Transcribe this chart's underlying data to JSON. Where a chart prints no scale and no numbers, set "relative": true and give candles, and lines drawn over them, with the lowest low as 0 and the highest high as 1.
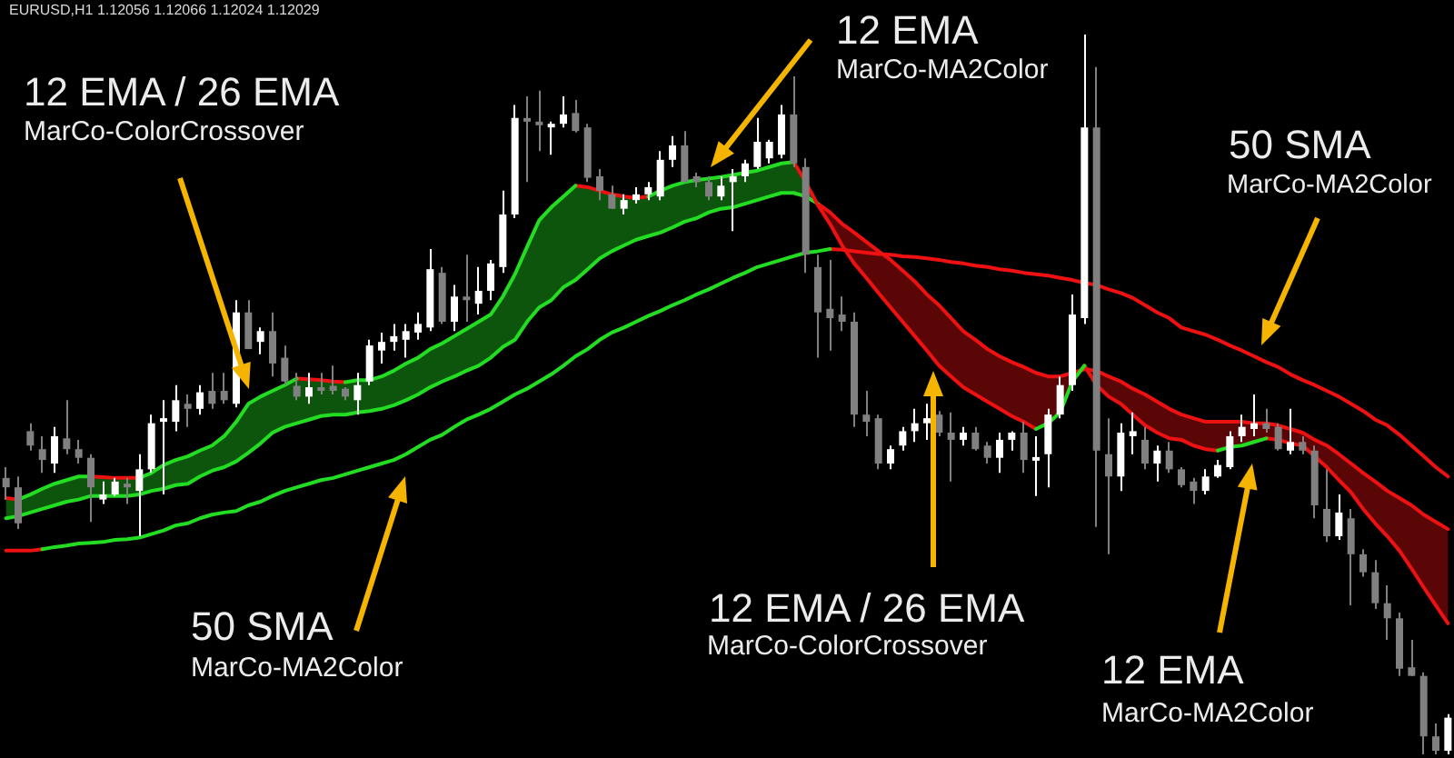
{
  "chart_data": {
    "type": "candlestick",
    "title": "EURUSD,H1 1.12056 1.12066 1.12024 1.12029",
    "relative": true,
    "categories": [
      null,
      null,
      null,
      null,
      null,
      null,
      null,
      null,
      null,
      null,
      null,
      null,
      null,
      null,
      null,
      null,
      null,
      null,
      null,
      null,
      null,
      null,
      null,
      null,
      null,
      null,
      null,
      null,
      null,
      null,
      null,
      null,
      null,
      null,
      null,
      null,
      null,
      null,
      null,
      null,
      null,
      null,
      null,
      null,
      null,
      null,
      null,
      null,
      null,
      null,
      null,
      null,
      null,
      null,
      null,
      null,
      null,
      null,
      null,
      null,
      null,
      null,
      null,
      null,
      null,
      null,
      null,
      null,
      null,
      null,
      null,
      null,
      null,
      null,
      null,
      null,
      null,
      null,
      null,
      null,
      null,
      null,
      null,
      null,
      null,
      null,
      null,
      null,
      null,
      null,
      null,
      null,
      null,
      null,
      null,
      null,
      null,
      null,
      null,
      null,
      null,
      null,
      null,
      null,
      null,
      null,
      null,
      null,
      null,
      null,
      null,
      null,
      null,
      null,
      null,
      null,
      null,
      null,
      null,
      null
    ],
    "ohlc": [
      [
        0.384,
        0.399,
        0.354,
        0.371
      ],
      [
        0.371,
        0.386,
        0.313,
        0.321
      ],
      [
        0.449,
        0.46,
        0.422,
        0.429
      ],
      [
        0.424,
        0.442,
        0.391,
        0.409
      ],
      [
        0.404,
        0.455,
        0.391,
        0.442
      ],
      [
        0.439,
        0.492,
        0.417,
        0.424
      ],
      [
        0.424,
        0.437,
        0.404,
        0.412
      ],
      [
        0.412,
        0.417,
        0.323,
        0.371
      ],
      [
        0.354,
        0.379,
        0.348,
        0.361
      ],
      [
        0.361,
        0.384,
        0.359,
        0.379
      ],
      [
        0.376,
        0.384,
        0.348,
        0.371
      ],
      [
        0.366,
        0.417,
        0.303,
        0.396
      ],
      [
        0.396,
        0.472,
        0.391,
        0.46
      ],
      [
        0.462,
        0.492,
        0.361,
        0.467
      ],
      [
        0.462,
        0.513,
        0.449,
        0.492
      ],
      [
        0.487,
        0.5,
        0.455,
        0.48
      ],
      [
        0.48,
        0.513,
        0.472,
        0.503
      ],
      [
        0.505,
        0.53,
        0.48,
        0.487
      ],
      [
        0.505,
        0.53,
        0.487,
        0.492
      ],
      [
        0.487,
        0.631,
        0.482,
        0.614
      ],
      [
        0.614,
        0.631,
        0.563,
        0.563
      ],
      [
        0.573,
        0.593,
        0.556,
        0.588
      ],
      [
        0.588,
        0.614,
        0.525,
        0.543
      ],
      [
        0.551,
        0.568,
        0.513,
        0.518
      ],
      [
        0.512,
        0.53,
        0.492,
        0.497
      ],
      [
        0.497,
        0.53,
        0.487,
        0.51
      ],
      [
        0.51,
        0.53,
        0.5,
        0.505
      ],
      [
        0.512,
        0.54,
        0.5,
        0.505
      ],
      [
        0.508,
        0.51,
        0.492,
        0.497
      ],
      [
        0.492,
        0.53,
        0.472,
        0.513
      ],
      [
        0.518,
        0.576,
        0.513,
        0.568
      ],
      [
        0.561,
        0.586,
        0.543,
        0.573
      ],
      [
        0.573,
        0.598,
        0.561,
        0.581
      ],
      [
        0.576,
        0.598,
        0.551,
        0.588
      ],
      [
        0.586,
        0.614,
        0.576,
        0.598
      ],
      [
        0.593,
        0.702,
        0.588,
        0.674
      ],
      [
        0.669,
        0.677,
        0.598,
        0.601
      ],
      [
        0.601,
        0.652,
        0.588,
        0.636
      ],
      [
        0.636,
        0.694,
        0.601,
        0.631
      ],
      [
        0.626,
        0.677,
        0.611,
        0.644
      ],
      [
        0.644,
        0.687,
        0.631,
        0.682
      ],
      [
        0.677,
        0.783,
        0.669,
        0.75
      ],
      [
        0.75,
        0.902,
        0.745,
        0.884
      ],
      [
        0.884,
        0.914,
        0.795,
        0.879
      ],
      [
        0.879,
        0.922,
        0.838,
        0.874
      ],
      [
        0.871,
        0.879,
        0.833,
        0.876
      ],
      [
        0.876,
        0.914,
        0.871,
        0.889
      ],
      [
        0.891,
        0.909,
        0.864,
        0.866
      ],
      [
        0.871,
        0.876,
        0.795,
        0.801
      ],
      [
        0.803,
        0.813,
        0.77,
        0.783
      ],
      [
        0.778,
        0.79,
        0.758,
        0.758
      ],
      [
        0.758,
        0.778,
        0.75,
        0.77
      ],
      [
        0.77,
        0.788,
        0.765,
        0.778
      ],
      [
        0.778,
        0.795,
        0.77,
        0.788
      ],
      [
        0.775,
        0.838,
        0.77,
        0.826
      ],
      [
        0.826,
        0.859,
        0.816,
        0.846
      ],
      [
        0.846,
        0.866,
        0.795,
        0.795
      ],
      [
        0.803,
        0.808,
        0.788,
        0.795
      ],
      [
        0.795,
        0.803,
        0.77,
        0.775
      ],
      [
        0.775,
        0.803,
        0.77,
        0.79
      ],
      [
        0.795,
        0.813,
        0.727,
        0.803
      ],
      [
        0.803,
        0.826,
        0.795,
        0.821
      ],
      [
        0.816,
        0.884,
        0.813,
        0.851
      ],
      [
        0.828,
        0.854,
        0.821,
        0.851
      ],
      [
        0.833,
        0.902,
        0.828,
        0.889
      ],
      [
        0.889,
        0.942,
        0.816,
        0.821
      ],
      [
        0.816,
        0.828,
        0.669,
        0.694
      ],
      [
        0.677,
        0.694,
        0.551,
        0.614
      ],
      [
        0.619,
        0.687,
        0.561,
        0.606
      ],
      [
        0.611,
        0.636,
        0.588,
        0.601
      ],
      [
        0.601,
        0.614,
        0.455,
        0.472
      ],
      [
        0.472,
        0.505,
        0.442,
        0.462
      ],
      [
        0.467,
        0.472,
        0.396,
        0.404
      ],
      [
        0.404,
        0.429,
        0.396,
        0.424
      ],
      [
        0.429,
        0.455,
        0.422,
        0.449
      ],
      [
        0.449,
        0.48,
        0.434,
        0.46
      ],
      [
        0.46,
        0.487,
        0.437,
        0.467
      ],
      [
        0.472,
        0.477,
        0.442,
        0.447
      ],
      [
        0.447,
        0.475,
        0.379,
        0.437
      ],
      [
        0.437,
        0.455,
        0.429,
        0.447
      ],
      [
        0.447,
        0.455,
        0.422,
        0.424
      ],
      [
        0.429,
        0.434,
        0.404,
        0.412
      ],
      [
        0.412,
        0.447,
        0.391,
        0.437
      ],
      [
        0.437,
        0.449,
        0.422,
        0.447
      ],
      [
        0.447,
        0.462,
        0.391,
        0.409
      ],
      [
        0.409,
        0.442,
        0.359,
        0.412
      ],
      [
        0.417,
        0.48,
        0.371,
        0.472
      ],
      [
        0.472,
        0.525,
        0.467,
        0.513
      ],
      [
        0.513,
        0.639,
        0.505,
        0.611
      ],
      [
        0.606,
        1,
        0.598,
        0.871
      ],
      [
        0.871,
        0.955,
        0.316,
        0.422
      ],
      [
        0.417,
        0.467,
        0.278,
        0.386
      ],
      [
        0.386,
        0.46,
        0.366,
        0.447
      ],
      [
        0.442,
        0.475,
        0.417,
        0.449
      ],
      [
        0.437,
        0.455,
        0.396,
        0.404
      ],
      [
        0.404,
        0.429,
        0.379,
        0.422
      ],
      [
        0.422,
        0.434,
        0.391,
        0.396
      ],
      [
        0.396,
        0.399,
        0.371,
        0.374
      ],
      [
        0.379,
        0.384,
        0.348,
        0.366
      ],
      [
        0.366,
        0.396,
        0.361,
        0.386
      ],
      [
        0.386,
        0.409,
        0.384,
        0.402
      ],
      [
        0.399,
        0.449,
        0.396,
        0.442
      ],
      [
        0.442,
        0.472,
        0.434,
        0.455
      ],
      [
        0.452,
        0.5,
        0.442,
        0.46
      ],
      [
        0.46,
        0.48,
        0.447,
        0.452
      ],
      [
        0.455,
        0.46,
        0.422,
        0.424
      ],
      [
        0.422,
        0.48,
        0.417,
        0.434
      ],
      [
        0.434,
        0.442,
        0.417,
        0.422
      ],
      [
        0.422,
        0.429,
        0.328,
        0.346
      ],
      [
        0.341,
        0.396,
        0.295,
        0.303
      ],
      [
        0.303,
        0.361,
        0.298,
        0.336
      ],
      [
        0.328,
        0.341,
        0.207,
        0.278
      ],
      [
        0.278,
        0.285,
        0.247,
        0.253
      ],
      [
        0.253,
        0.27,
        0.202,
        0.21
      ],
      [
        0.21,
        0.235,
        0.159,
        0.189
      ],
      [
        0.189,
        0.197,
        0.109,
        0.119
      ],
      [
        0.121,
        0.159,
        0.109,
        0.109
      ],
      [
        0.109,
        0.114,
        0,
        0.025
      ],
      [
        0.025,
        0.043,
        0,
        0.005
      ],
      [
        0.005,
        0.056,
        0,
        0.051
      ]
    ],
    "colors": [
      "#808080",
      "#808080",
      "#808080",
      "#808080",
      "#ffffff",
      "#808080",
      "#808080",
      "#808080",
      "#ffffff",
      "#ffffff",
      "#808080",
      "#ffffff",
      "#ffffff",
      "#ffffff",
      "#ffffff",
      "#808080",
      "#ffffff",
      "#808080",
      "#808080",
      "#ffffff",
      "#808080",
      "#ffffff",
      "#808080",
      "#808080",
      "#808080",
      "#ffffff",
      "#808080",
      "#808080",
      "#808080",
      "#ffffff",
      "#ffffff",
      "#ffffff",
      "#ffffff",
      "#ffffff",
      "#ffffff",
      "#ffffff",
      "#808080",
      "#ffffff",
      "#808080",
      "#ffffff",
      "#ffffff",
      "#ffffff",
      "#ffffff",
      "#808080",
      "#808080",
      "#ffffff",
      "#ffffff",
      "#808080",
      "#808080",
      "#808080",
      "#808080",
      "#ffffff",
      "#ffffff",
      "#ffffff",
      "#ffffff",
      "#ffffff",
      "#808080",
      "#808080",
      "#808080",
      "#ffffff",
      "#ffffff",
      "#ffffff",
      "#ffffff",
      "#ffffff",
      "#ffffff",
      "#808080",
      "#808080",
      "#808080",
      "#808080",
      "#808080",
      "#808080",
      "#808080",
      "#808080",
      "#ffffff",
      "#ffffff",
      "#ffffff",
      "#ffffff",
      "#808080",
      "#808080",
      "#ffffff",
      "#808080",
      "#808080",
      "#ffffff",
      "#ffffff",
      "#808080",
      "#ffffff",
      "#ffffff",
      "#ffffff",
      "#ffffff",
      "#ffffff",
      "#808080",
      "#808080",
      "#ffffff",
      "#ffffff",
      "#808080",
      "#ffffff",
      "#808080",
      "#808080",
      "#808080",
      "#ffffff",
      "#ffffff",
      "#ffffff",
      "#ffffff",
      "#ffffff",
      "#808080",
      "#808080",
      "#ffffff",
      "#808080",
      "#808080",
      "#808080",
      "#ffffff",
      "#808080",
      "#808080",
      "#808080",
      "#808080",
      "#808080",
      "#808080",
      "#808080",
      "#808080",
      "#ffffff"
    ],
    "series": [
      {
        "type": "line",
        "color": "#22dd22",
        "values": [
          null,
          0.354,
          0.361,
          0.369,
          0.376,
          0.381,
          0.386,
          0.386,
          null,
          null,
          null,
          0.384,
          0.391,
          0.402,
          0.409,
          0.414,
          0.422,
          0.429,
          0.442,
          0.462,
          0.487,
          0.497,
          0.505,
          0.513,
          0.522,
          null,
          null,
          null,
          0.517,
          0.52,
          0.52,
          0.525,
          0.533,
          0.543,
          0.551,
          0.563,
          0.571,
          0.581,
          0.591,
          0.601,
          0.611,
          0.636,
          0.667,
          0.705,
          0.742,
          0.76,
          0.775,
          0.79,
          null,
          null,
          null,
          null,
          null,
          0.775,
          0.783,
          0.79,
          0.795,
          0.798,
          0.8,
          0.802,
          0.805,
          0.808,
          0.811,
          0.816,
          0.821,
          0.823,
          null,
          null,
          null,
          null,
          null,
          null,
          null,
          null,
          null,
          null,
          null,
          null,
          null,
          null,
          null,
          null,
          null,
          null,
          null,
          0.452,
          0.46,
          0.475,
          0.518,
          0.54,
          null,
          null,
          null,
          null,
          null,
          null,
          null,
          null,
          null,
          null,
          0.422,
          0.427,
          0.429,
          0.434,
          0.439,
          null,
          null,
          null,
          null,
          null,
          null,
          null,
          null,
          null,
          null,
          null,
          null,
          null,
          null,
          null
        ]
      },
      {
        "type": "line",
        "color": "#ee1111",
        "values": [
          0.356,
          0.354,
          null,
          null,
          null,
          null,
          null,
          0.386,
          0.385,
          0.384,
          0.384,
          0.384,
          null,
          null,
          null,
          null,
          null,
          null,
          null,
          null,
          null,
          null,
          null,
          null,
          0.522,
          0.521,
          0.52,
          0.518,
          0.517,
          null,
          null,
          null,
          null,
          null,
          null,
          null,
          null,
          null,
          null,
          null,
          null,
          null,
          null,
          null,
          null,
          null,
          null,
          0.79,
          0.788,
          0.783,
          0.778,
          0.775,
          0.773,
          0.775,
          null,
          null,
          null,
          null,
          null,
          null,
          null,
          null,
          null,
          null,
          null,
          0.823,
          0.795,
          0.763,
          0.737,
          0.707,
          0.682,
          0.662,
          0.641,
          0.621,
          0.601,
          0.581,
          0.561,
          0.54,
          0.525,
          0.51,
          0.5,
          0.49,
          0.48,
          0.47,
          0.462,
          0.452,
          null,
          null,
          null,
          0.54,
          0.513,
          0.497,
          0.487,
          0.472,
          0.457,
          0.447,
          0.439,
          0.437,
          0.429,
          0.424,
          0.422,
          null,
          null,
          null,
          0.439,
          0.437,
          0.432,
          0.429,
          0.414,
          0.399,
          0.381,
          0.364,
          0.341,
          0.321,
          0.303,
          0.283,
          0.258,
          0.232,
          0.207,
          0.182
        ]
      },
      {
        "type": "line",
        "color": "#22dd22",
        "values": [
          0.328,
          0.331,
          0.336,
          0.341,
          0.346,
          0.351,
          0.354,
          0.359,
          0.359,
          0.359,
          0.359,
          0.361,
          0.366,
          0.369,
          0.374,
          0.376,
          0.386,
          0.394,
          0.399,
          0.407,
          0.419,
          0.432,
          0.447,
          0.455,
          0.46,
          0.465,
          0.47,
          0.472,
          0.472,
          0.475,
          0.477,
          0.48,
          0.485,
          0.492,
          0.5,
          0.51,
          0.518,
          0.525,
          0.533,
          0.54,
          0.551,
          0.566,
          0.576,
          0.601,
          0.621,
          0.631,
          0.649,
          0.659,
          0.674,
          0.689,
          0.699,
          0.707,
          0.715,
          0.72,
          0.725,
          0.732,
          0.74,
          0.745,
          0.753,
          0.758,
          0.76,
          0.765,
          0.77,
          0.775,
          0.78,
          0.78,
          0.775,
          0.765,
          null,
          null,
          null,
          null,
          null,
          null,
          null,
          null,
          null,
          null,
          null,
          null,
          null,
          null,
          null,
          null,
          null,
          null,
          null,
          null,
          null,
          null,
          null,
          null,
          null,
          null,
          null,
          null,
          null,
          null,
          null,
          null,
          null,
          null,
          null,
          null,
          null,
          null,
          null,
          null,
          null,
          null,
          null,
          null,
          null,
          null,
          null,
          null,
          null,
          null,
          null,
          null
        ],
        "lower": [
          0.328,
          0.331,
          0.336,
          0.341,
          0.346,
          0.351,
          0.354,
          0.359,
          0.359,
          0.359,
          0.359,
          0.361,
          0.366,
          0.369,
          0.374,
          0.376,
          0.386,
          0.394,
          0.399,
          0.407,
          0.419,
          0.432,
          0.447,
          0.455,
          0.46,
          0.465,
          0.47,
          0.472,
          0.472,
          0.475,
          0.477,
          0.48,
          0.485,
          0.492,
          0.5,
          0.51,
          0.518,
          0.525,
          0.533,
          0.54,
          0.551,
          0.566,
          0.576,
          0.601,
          0.621,
          0.631,
          0.649,
          0.659,
          0.674,
          0.689,
          0.699,
          0.707,
          0.715,
          0.72,
          0.725,
          0.732,
          0.74,
          0.745,
          0.753,
          0.758,
          0.76,
          0.765,
          0.77,
          0.775,
          0.78,
          0.78,
          0.775,
          0.763,
          null,
          null,
          null,
          null,
          null,
          null,
          null,
          null,
          null,
          null,
          null,
          null,
          null,
          null,
          null,
          null,
          null,
          null,
          null,
          null,
          null,
          null,
          null,
          null,
          null,
          null,
          null,
          null,
          null,
          null,
          null,
          null,
          null,
          null,
          null,
          null,
          null,
          null,
          null,
          null,
          null,
          null,
          null,
          null,
          null,
          null,
          null,
          null,
          null,
          null,
          null,
          null
        ],
        "upper": [
          0.356,
          0.354,
          0.361,
          0.369,
          0.376,
          0.381,
          0.386,
          0.386,
          0.385,
          0.384,
          0.384,
          0.384,
          0.391,
          0.402,
          0.409,
          0.414,
          0.422,
          0.429,
          0.442,
          0.462,
          0.487,
          0.497,
          0.505,
          0.513,
          0.522,
          0.521,
          0.52,
          0.518,
          0.517,
          0.52,
          0.52,
          0.525,
          0.533,
          0.543,
          0.551,
          0.563,
          0.571,
          0.581,
          0.591,
          0.601,
          0.611,
          0.636,
          0.667,
          0.705,
          0.742,
          0.76,
          0.775,
          0.79,
          0.788,
          0.783,
          0.778,
          0.775,
          0.773,
          0.775,
          0.783,
          0.79,
          0.795,
          0.798,
          0.8,
          0.802,
          0.805,
          0.808,
          0.811,
          0.816,
          0.821,
          0.823,
          0.795,
          0.765,
          null,
          null,
          null,
          null,
          null,
          null,
          null,
          null,
          null,
          null,
          null,
          null,
          null,
          null,
          null,
          null,
          null,
          null,
          null,
          null,
          null,
          null,
          null,
          null,
          null,
          null,
          null,
          null,
          null,
          null,
          null,
          null,
          null,
          null,
          null,
          null,
          null,
          null,
          null,
          null,
          null,
          null,
          null,
          null,
          null,
          null,
          null,
          null,
          null,
          null,
          null,
          null
        ]
      },
      {
        "type": "line",
        "color": "#ee1111",
        "values": [
          null,
          null,
          null,
          null,
          null,
          null,
          null,
          null,
          null,
          null,
          null,
          null,
          null,
          null,
          null,
          null,
          null,
          null,
          null,
          null,
          null,
          null,
          null,
          null,
          null,
          null,
          null,
          null,
          null,
          null,
          null,
          null,
          null,
          null,
          null,
          null,
          null,
          null,
          null,
          null,
          null,
          null,
          null,
          null,
          null,
          null,
          null,
          null,
          null,
          null,
          null,
          null,
          null,
          null,
          null,
          null,
          null,
          null,
          null,
          null,
          null,
          null,
          null,
          null,
          null,
          null,
          null,
          0.765,
          0.753,
          0.737,
          0.725,
          0.712,
          0.699,
          0.687,
          0.672,
          0.657,
          0.639,
          0.624,
          0.606,
          0.588,
          0.576,
          0.563,
          0.553,
          0.545,
          0.538,
          0.53,
          0.525,
          0.525,
          0.53,
          0.535,
          0.533,
          0.525,
          0.518,
          0.508,
          0.5,
          0.49,
          0.48,
          0.472,
          0.467,
          0.462,
          0.462,
          0.462,
          0.462,
          0.46,
          0.46,
          0.457,
          0.452,
          0.447,
          0.437,
          0.429,
          0.417,
          0.404,
          0.391,
          0.379,
          0.366,
          0.356,
          0.346,
          0.333,
          0.323,
          0.313
        ],
        "lower": [
          null,
          null,
          null,
          null,
          null,
          null,
          null,
          null,
          null,
          null,
          null,
          null,
          null,
          null,
          null,
          null,
          null,
          null,
          null,
          null,
          null,
          null,
          null,
          null,
          null,
          null,
          null,
          null,
          null,
          null,
          null,
          null,
          null,
          null,
          null,
          null,
          null,
          null,
          null,
          null,
          null,
          null,
          null,
          null,
          null,
          null,
          null,
          null,
          null,
          null,
          null,
          null,
          null,
          null,
          null,
          null,
          null,
          null,
          null,
          null,
          null,
          null,
          null,
          null,
          null,
          null,
          null,
          0.763,
          0.737,
          0.707,
          0.682,
          0.662,
          0.641,
          0.621,
          0.601,
          0.581,
          0.561,
          0.54,
          0.525,
          0.51,
          0.5,
          0.49,
          0.48,
          0.47,
          0.462,
          0.452,
          0.46,
          0.475,
          0.518,
          0.535,
          0.513,
          0.497,
          0.487,
          0.472,
          0.457,
          0.447,
          0.439,
          0.437,
          0.429,
          0.424,
          0.422,
          0.427,
          0.429,
          0.434,
          0.439,
          0.437,
          0.432,
          0.429,
          0.414,
          0.399,
          0.381,
          0.364,
          0.341,
          0.321,
          0.303,
          0.283,
          0.258,
          0.232,
          0.207,
          0.182
        ],
        "upper": [
          null,
          null,
          null,
          null,
          null,
          null,
          null,
          null,
          null,
          null,
          null,
          null,
          null,
          null,
          null,
          null,
          null,
          null,
          null,
          null,
          null,
          null,
          null,
          null,
          null,
          null,
          null,
          null,
          null,
          null,
          null,
          null,
          null,
          null,
          null,
          null,
          null,
          null,
          null,
          null,
          null,
          null,
          null,
          null,
          null,
          null,
          null,
          null,
          null,
          null,
          null,
          null,
          null,
          null,
          null,
          null,
          null,
          null,
          null,
          null,
          null,
          null,
          null,
          null,
          null,
          null,
          null,
          0.765,
          0.753,
          0.737,
          0.725,
          0.712,
          0.699,
          0.687,
          0.672,
          0.657,
          0.639,
          0.624,
          0.606,
          0.588,
          0.576,
          0.563,
          0.553,
          0.545,
          0.538,
          0.53,
          0.525,
          0.525,
          0.53,
          0.54,
          0.533,
          0.525,
          0.518,
          0.508,
          0.5,
          0.49,
          0.48,
          0.472,
          0.467,
          0.462,
          0.462,
          0.462,
          0.462,
          0.46,
          0.46,
          0.457,
          0.452,
          0.447,
          0.437,
          0.429,
          0.417,
          0.404,
          0.391,
          0.379,
          0.366,
          0.356,
          0.346,
          0.333,
          0.323,
          0.313
        ]
      },
      {
        "type": "line",
        "color": "#22dd22",
        "values": [
          null,
          null,
          null,
          0.285,
          0.288,
          0.29,
          0.293,
          0.294,
          0.295,
          0.298,
          0.299,
          0.301,
          0.306,
          0.311,
          0.318,
          0.321,
          0.328,
          0.333,
          0.336,
          0.338,
          0.346,
          0.351,
          0.359,
          0.366,
          0.371,
          0.376,
          0.381,
          0.384,
          0.389,
          0.394,
          0.399,
          0.404,
          0.409,
          0.417,
          0.427,
          0.437,
          0.444,
          0.455,
          0.465,
          0.472,
          0.48,
          0.49,
          0.5,
          0.508,
          0.518,
          0.528,
          0.54,
          0.553,
          0.563,
          0.576,
          0.586,
          0.593,
          0.601,
          0.609,
          0.616,
          0.624,
          0.631,
          0.639,
          0.646,
          0.654,
          0.662,
          0.669,
          0.677,
          0.682,
          0.687,
          0.692,
          0.697,
          0.699,
          0.702,
          null,
          null,
          null,
          null,
          null,
          null,
          null,
          null,
          null,
          null,
          null,
          null,
          null,
          null,
          null,
          null,
          null,
          null,
          null,
          null,
          null,
          null,
          null,
          null,
          null,
          null,
          null,
          null,
          null,
          null,
          null,
          null,
          null,
          null,
          null,
          null,
          null,
          null,
          null,
          null,
          null,
          null,
          null,
          null,
          null,
          null,
          null,
          null,
          null,
          null,
          null
        ]
      },
      {
        "type": "line",
        "color": "#ee1111",
        "values": [
          0.283,
          0.283,
          0.283,
          0.285,
          null,
          null,
          null,
          null,
          null,
          null,
          null,
          null,
          null,
          null,
          null,
          null,
          null,
          null,
          null,
          null,
          null,
          null,
          null,
          null,
          null,
          null,
          null,
          null,
          null,
          null,
          null,
          null,
          null,
          null,
          null,
          null,
          null,
          null,
          null,
          null,
          null,
          null,
          null,
          null,
          null,
          null,
          null,
          null,
          null,
          null,
          null,
          null,
          null,
          null,
          null,
          null,
          null,
          null,
          null,
          null,
          null,
          null,
          null,
          null,
          null,
          null,
          null,
          null,
          0.702,
          0.701,
          0.699,
          0.697,
          0.695,
          0.694,
          0.692,
          0.691,
          0.689,
          0.687,
          0.684,
          0.682,
          0.679,
          0.677,
          0.674,
          0.672,
          0.669,
          0.667,
          0.665,
          0.662,
          0.659,
          0.655,
          0.652,
          0.646,
          0.641,
          0.634,
          0.624,
          0.614,
          0.606,
          0.593,
          0.588,
          0.583,
          0.576,
          0.568,
          0.561,
          0.553,
          0.545,
          0.538,
          0.528,
          0.52,
          0.513,
          0.505,
          0.497,
          0.487,
          0.477,
          0.465,
          0.457,
          0.444,
          0.429,
          0.414,
          0.399,
          0.386
        ]
      }
    ],
    "annotations": [
      "12 EMA / 26 EMA",
      "MarCo-ColorCrossover",
      "12 EMA",
      "MarCo-MA2Color",
      "50 SMA",
      "MarCo-MA2Color",
      "50 SMA",
      "MarCo-MA2Color",
      "12 EMA / 26 EMA",
      "MarCo-ColorCrossover",
      "12 EMA",
      "MarCo-MA2Color"
    ]
  }
}
